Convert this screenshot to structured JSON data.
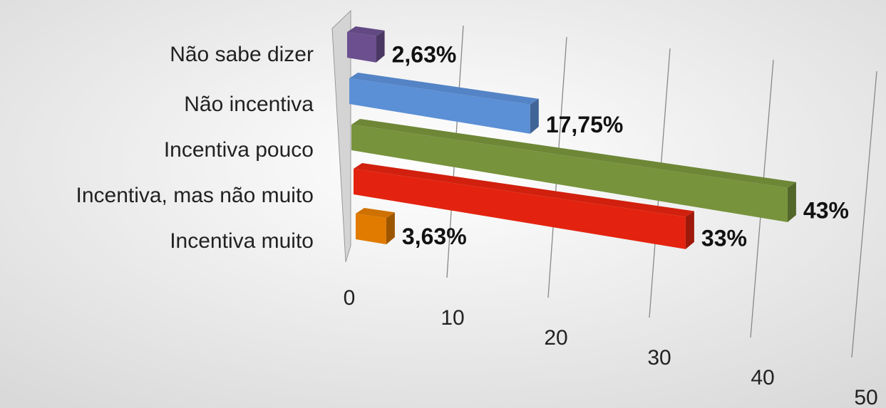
{
  "chart_data": {
    "type": "bar",
    "orientation": "horizontal",
    "categories": [
      "Não sabe dizer",
      "Não incentiva",
      "Incentiva pouco",
      "Incentiva, mas não muito",
      "Incentiva muito"
    ],
    "values": [
      2.63,
      17.75,
      43,
      33,
      3.63
    ],
    "value_labels": [
      "2,63%",
      "17,75%",
      "43%",
      "33%",
      "3,63%"
    ],
    "colors": [
      "#6b4f8e",
      "#5b8fd6",
      "#77933c",
      "#e3230f",
      "#e07b00"
    ],
    "xlim": [
      0,
      50
    ],
    "xticks": [
      0,
      10,
      20,
      30,
      40,
      50
    ],
    "grid": true
  }
}
